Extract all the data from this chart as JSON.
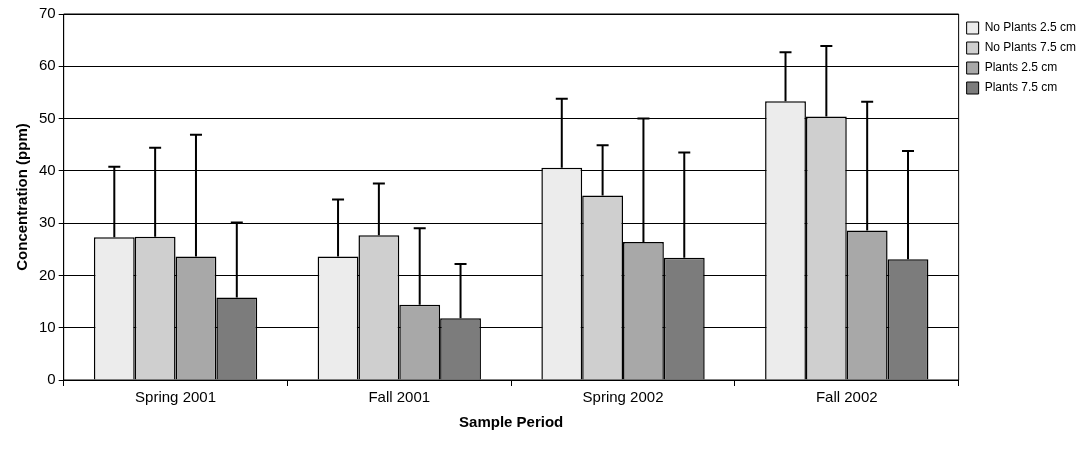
{
  "chart_data": {
    "type": "bar",
    "xlabel": "Sample Period",
    "ylabel": "Concentration (ppm)",
    "categories": [
      "Spring 2001",
      "Fall 2001",
      "Spring 2002",
      "Fall 2002"
    ],
    "series": [
      {
        "name": "No Plants 2.5 cm",
        "color": "#ececec",
        "values": [
          27.3,
          23.6,
          40.6,
          53.3
        ],
        "errors": [
          [
            27.3,
            40.8
          ],
          [
            23.6,
            34.5
          ],
          [
            40.6,
            53.8
          ],
          [
            53.3,
            62.7
          ]
        ]
      },
      {
        "name": "No Plants 7.5 cm",
        "color": "#cfcfcf",
        "values": [
          27.4,
          27.7,
          35.3,
          50.4
        ],
        "errors": [
          [
            27.4,
            44.4
          ],
          [
            27.7,
            37.6
          ],
          [
            35.3,
            44.9
          ],
          [
            50.4,
            63.9
          ]
        ]
      },
      {
        "name": "Plants 2.5 cm",
        "color": "#a8a8a8",
        "values": [
          23.6,
          14.4,
          26.4,
          28.6
        ],
        "errors": [
          [
            23.6,
            46.9
          ],
          [
            14.4,
            29.0
          ],
          [
            26.4,
            50.0
          ],
          [
            28.6,
            53.2
          ]
        ]
      },
      {
        "name": "Plants 7.5 cm",
        "color": "#7c7c7c",
        "values": [
          15.8,
          11.8,
          23.4,
          23.1
        ],
        "errors": [
          [
            15.8,
            30.1
          ],
          [
            11.8,
            22.2
          ],
          [
            23.4,
            43.5
          ],
          [
            23.1,
            43.8
          ]
        ]
      }
    ],
    "ylim": [
      0,
      70
    ],
    "yticks": [
      0,
      10,
      20,
      30,
      40,
      50,
      60,
      70
    ],
    "grid": "y",
    "legend": "top right"
  }
}
